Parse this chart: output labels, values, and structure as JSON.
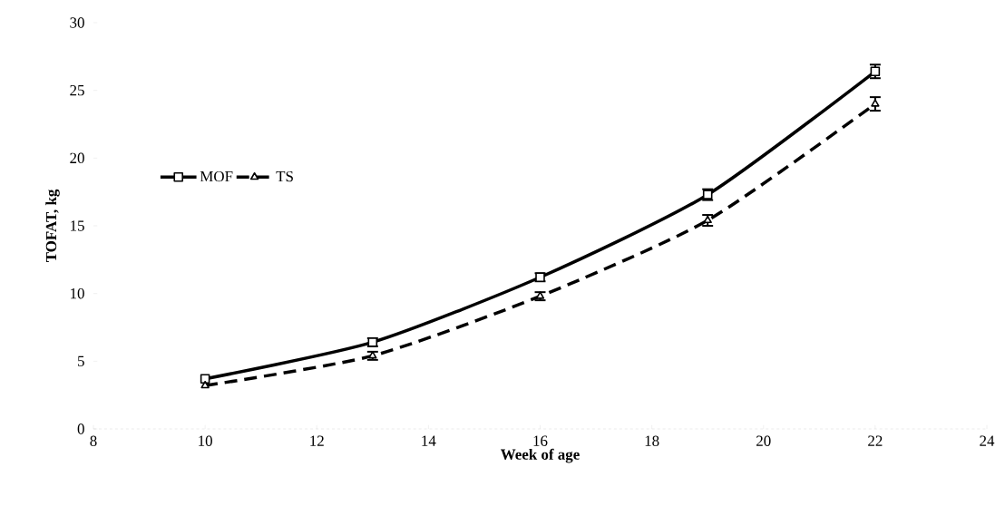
{
  "chart_data": {
    "type": "line",
    "xlabel": "Week of age",
    "ylabel": "TOFAT, kg",
    "x": [
      10,
      13,
      16,
      19,
      22
    ],
    "series": [
      {
        "name": "MOF",
        "color": "#000000",
        "values": [
          3.7,
          6.4,
          11.2,
          17.3,
          26.4
        ],
        "errors": [
          null,
          0.3,
          0.3,
          0.4,
          0.5
        ],
        "marker": "square",
        "line_style": "solid"
      },
      {
        "name": "TS",
        "color": "#000000",
        "values": [
          3.2,
          5.4,
          9.8,
          15.4,
          24.0
        ],
        "errors": [
          null,
          0.3,
          0.3,
          0.4,
          0.5
        ],
        "marker": "triangle",
        "line_style": "dashed"
      }
    ],
    "xlim": [
      8,
      24
    ],
    "xticks": [
      8,
      10,
      12,
      14,
      16,
      18,
      20,
      22,
      24
    ],
    "ylim": [
      0,
      30
    ],
    "yticks": [
      0,
      5,
      10,
      15,
      20,
      25,
      30
    ],
    "grid": false,
    "legend": "left"
  }
}
